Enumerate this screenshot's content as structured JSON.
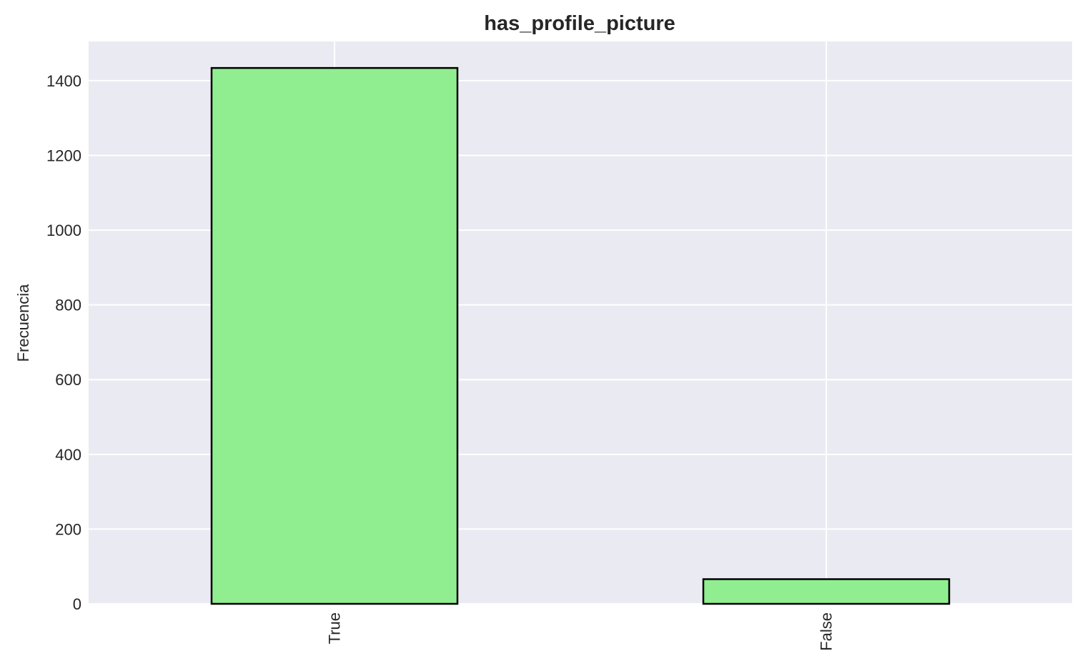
{
  "chart_data": {
    "type": "bar",
    "title": "has_profile_picture",
    "xlabel": "",
    "ylabel": "Frecuencia",
    "categories": [
      "True",
      "False"
    ],
    "values": [
      1434,
      66
    ],
    "ylim": [
      0,
      1505
    ],
    "yticks": [
      0,
      200,
      400,
      600,
      800,
      1000,
      1200,
      1400
    ],
    "grid": true,
    "x_tick_rotation": 90,
    "bar_color": "#90ee90",
    "bar_edge_color": "#000000",
    "plot_background": "#eaeaf2",
    "grid_color": "#ffffff"
  }
}
